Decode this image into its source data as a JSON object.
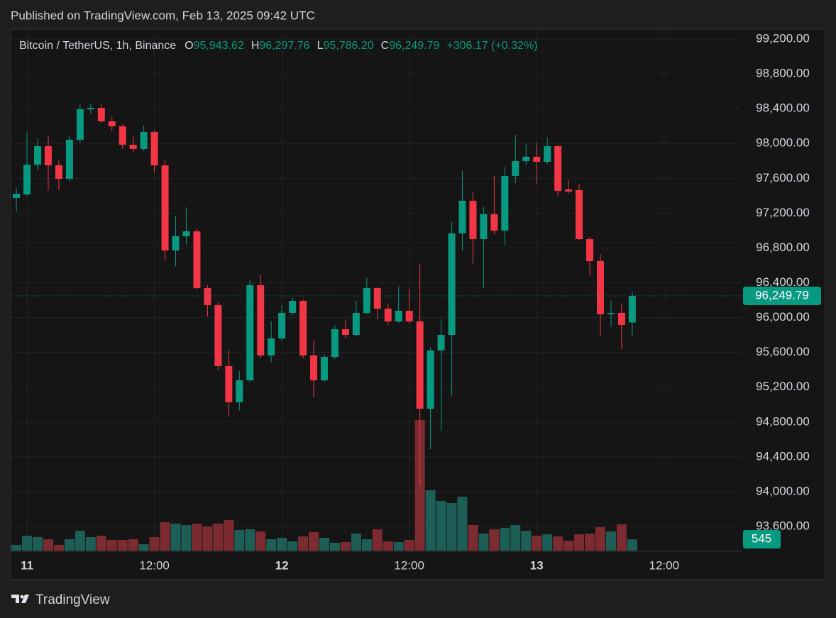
{
  "header": "Published on TradingView.com, Feb 13, 2025 09:42 UTC",
  "branding": "TradingView",
  "chart_data": {
    "type": "candlestick",
    "legend": {
      "symbol": "Bitcoin / TetherUS, 1h, Binance",
      "fields": [
        {
          "key": "O",
          "value": "95,943.62"
        },
        {
          "key": "H",
          "value": "96,297.76"
        },
        {
          "key": "L",
          "value": "95,786.20"
        },
        {
          "key": "C",
          "value": "96,249.79"
        }
      ],
      "change": "+306.17 (+0.32%)"
    },
    "up_color": "#089981",
    "down_color": "#f23645",
    "volume_up_color": "#1d5e56",
    "volume_down_color": "#7c2c31",
    "x": [
      -1,
      0,
      1,
      2,
      3,
      4,
      5,
      6,
      7,
      8,
      9,
      10,
      11,
      12,
      13,
      14,
      15,
      16,
      17,
      18,
      19,
      20,
      21,
      22,
      23,
      24,
      25,
      26,
      27,
      28,
      29,
      30,
      31,
      32,
      33,
      34,
      35,
      36,
      37,
      38,
      39,
      40,
      41,
      42,
      43,
      44,
      45,
      46,
      47,
      48,
      49,
      50,
      51,
      52,
      53,
      54,
      55,
      56,
      57
    ],
    "open": [
      97374,
      97415,
      97757,
      97969,
      97749,
      97594,
      98043,
      98393,
      98409,
      98254,
      98197,
      97986,
      97937,
      98132,
      97749,
      96771,
      96934,
      96991,
      96339,
      96143,
      95443,
      95027,
      95279,
      96372,
      95565,
      95760,
      96054,
      96192,
      95565,
      95279,
      95548,
      95866,
      95801,
      96054,
      96339,
      96103,
      95956,
      96078,
      95956,
      94953,
      95622,
      95801,
      96967,
      97342,
      96901,
      97187,
      96999,
      97627,
      97798,
      97847,
      97790,
      97969,
      97472,
      97464,
      96901,
      96649,
      96038,
      96054,
      95943.62
    ],
    "high": [
      97488,
      98132,
      98059,
      98083,
      97806,
      98083,
      98450,
      98458,
      98450,
      98303,
      98221,
      98083,
      98205,
      98148,
      97806,
      97162,
      97268,
      97024,
      96372,
      96176,
      95630,
      95385,
      96429,
      96494,
      95956,
      96143,
      96233,
      96209,
      95736,
      95573,
      95915,
      95980,
      96192,
      96453,
      96356,
      96160,
      96356,
      96331,
      96616,
      95662,
      95980,
      97097,
      97684,
      97448,
      97276,
      97627,
      97733,
      98100,
      98002,
      98010,
      98067,
      97977,
      97578,
      97537,
      96926,
      96730,
      96192,
      96160,
      96297.76
    ],
    "low": [
      97219,
      97399,
      97692,
      97464,
      97464,
      97562,
      98010,
      98344,
      98238,
      98140,
      97937,
      97896,
      97912,
      97668,
      96649,
      96592,
      96836,
      96323,
      96013,
      95394,
      94864,
      94937,
      95255,
      95532,
      95491,
      95736,
      96029,
      95532,
      95084,
      95263,
      95524,
      95760,
      95785,
      96038,
      95980,
      95915,
      95940,
      95932,
      94065,
      94489,
      94701,
      95100,
      96763,
      96616,
      96339,
      96959,
      96836,
      97545,
      97757,
      97529,
      97766,
      97399,
      97423,
      96893,
      96486,
      95793,
      95891,
      95638,
      95786.2
    ],
    "close": [
      97423,
      97757,
      97969,
      97749,
      97594,
      98043,
      98393,
      98409,
      98254,
      98197,
      97986,
      97937,
      98132,
      97749,
      96771,
      96934,
      96991,
      96339,
      96143,
      95443,
      95027,
      95279,
      96372,
      95565,
      95760,
      96054,
      96192,
      95565,
      95279,
      95548,
      95866,
      95801,
      96054,
      96339,
      96103,
      95956,
      96078,
      95956,
      94953,
      95622,
      95801,
      96967,
      97342,
      96901,
      97187,
      96999,
      97627,
      97798,
      97847,
      97790,
      97969,
      97456,
      97448,
      96901,
      96649,
      96038,
      96054,
      95915,
      96249.79
    ],
    "volume": [
      272,
      715,
      647,
      545,
      272,
      545,
      953,
      647,
      715,
      511,
      511,
      545,
      306,
      647,
      1362,
      1294,
      1226,
      1294,
      1158,
      1294,
      1465,
      988,
      1022,
      920,
      545,
      613,
      443,
      681,
      886,
      613,
      375,
      409,
      818,
      545,
      1022,
      443,
      409,
      511,
      6267,
      2895,
      2384,
      2282,
      2589,
      1226,
      818,
      1022,
      1090,
      1226,
      953,
      715,
      783,
      681,
      477,
      783,
      818,
      1124,
      920,
      1260,
      545
    ],
    "last_price": {
      "value": 96249.79,
      "label": "96,249.79"
    },
    "xlim": [
      -1.54,
      67.3
    ],
    "ylim": [
      93323,
      99306
    ],
    "volume_ylim": [
      0,
      25000
    ],
    "xticks": [
      {
        "value": 0,
        "label": "11"
      },
      {
        "value": 12,
        "label": "12:00"
      },
      {
        "value": 24,
        "label": "12"
      },
      {
        "value": 36,
        "label": "12:00"
      },
      {
        "value": 48,
        "label": "13"
      },
      {
        "value": 60,
        "label": "12:00"
      }
    ],
    "yticks": [
      {
        "value": 93600,
        "label": "93,600.00"
      },
      {
        "value": 94000,
        "label": "94,000.00"
      },
      {
        "value": 94400,
        "label": "94,400.00"
      },
      {
        "value": 94800,
        "label": "94,800.00"
      },
      {
        "value": 95200,
        "label": "95,200.00"
      },
      {
        "value": 95600,
        "label": "95,600.00"
      },
      {
        "value": 96000,
        "label": "96,000.00"
      },
      {
        "value": 96400,
        "label": "96,400.00"
      },
      {
        "value": 96800,
        "label": "96,800.00"
      },
      {
        "value": 97200,
        "label": "97,200.00"
      },
      {
        "value": 97600,
        "label": "97,600.00"
      },
      {
        "value": 98000,
        "label": "98,000.00"
      },
      {
        "value": 98400,
        "label": "98,400.00"
      },
      {
        "value": 98800,
        "label": "98,800.00"
      },
      {
        "value": 99200,
        "label": "99,200.00"
      }
    ],
    "grid": true
  }
}
